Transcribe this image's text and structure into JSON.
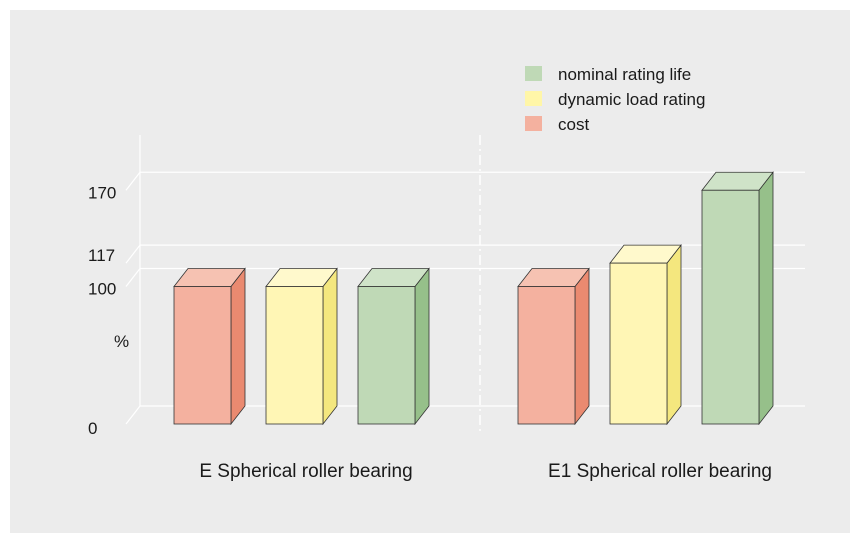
{
  "chart_data": {
    "type": "bar",
    "categories": [
      "E Spherical roller bearing",
      "E1 Spherical roller bearing"
    ],
    "series": [
      {
        "name": "cost",
        "values": [
          100,
          100
        ],
        "color": "#f4b19f",
        "side_color": "#ea8a70",
        "top_color": "#f6c2b2"
      },
      {
        "name": "dynamic load rating",
        "values": [
          100,
          117
        ],
        "color": "#fff6b5",
        "side_color": "#f4e77e",
        "top_color": "#fff9cc"
      },
      {
        "name": "nominal rating life",
        "values": [
          100,
          170
        ],
        "color": "#bfd9b6",
        "side_color": "#96c08a",
        "top_color": "#cfe3c8"
      }
    ],
    "legend": {
      "placement": "top-right",
      "entries": [
        "nominal rating life",
        "dynamic load rating",
        "cost"
      ]
    },
    "yaxis": {
      "ticks": [
        0,
        100,
        117,
        170
      ],
      "tick_labels": [
        "0",
        "100",
        "117",
        "170"
      ],
      "unit_label": "%",
      "ylim": [
        0,
        170
      ]
    },
    "xlabel": "",
    "ylabel": "",
    "title": "",
    "grid": true,
    "background": "#ececec"
  }
}
